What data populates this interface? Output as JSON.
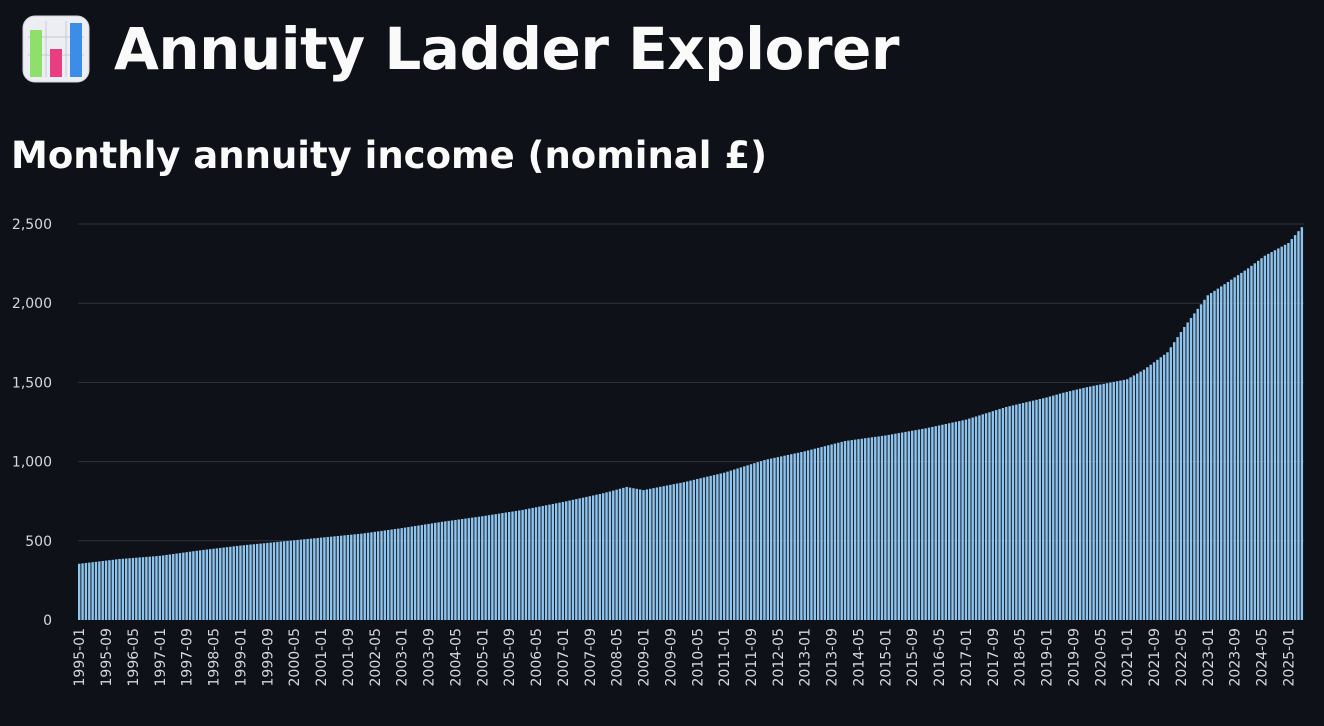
{
  "app": {
    "title": "Annuity Ladder Explorer",
    "icon": "bar-chart-icon"
  },
  "chart_data": {
    "type": "bar",
    "title": "Monthly annuity income (nominal £)",
    "xlabel": "",
    "ylabel": "",
    "ylim": [
      0,
      2500
    ],
    "grid": true,
    "legend": "none",
    "bar_color": "#8fc4ee",
    "y_ticks": [
      "0",
      "500",
      "1,000",
      "1,500",
      "2,000",
      "2,500"
    ],
    "x_tick_labels": [
      "1995-01",
      "1995-09",
      "1996-05",
      "1997-01",
      "1997-09",
      "1998-05",
      "1999-01",
      "1999-09",
      "2000-05",
      "2001-01",
      "2001-09",
      "2002-05",
      "2003-01",
      "2003-09",
      "2004-05",
      "2005-01",
      "2005-09",
      "2006-05",
      "2007-01",
      "2007-09",
      "2008-05",
      "2009-01",
      "2009-09",
      "2010-05",
      "2011-01",
      "2011-09",
      "2012-05",
      "2013-01",
      "2013-09",
      "2014-05",
      "2015-01",
      "2015-09",
      "2016-05",
      "2017-01",
      "2017-09",
      "2018-05",
      "2019-01",
      "2019-09",
      "2020-05",
      "2021-01",
      "2021-09",
      "2022-05",
      "2023-01",
      "2023-09",
      "2024-05",
      "2025-01"
    ],
    "x_start": "1995-01",
    "x_end": "2025-05",
    "series": [
      {
        "anchors": [
          [
            "1995-01",
            355
          ],
          [
            "1996-01",
            385
          ],
          [
            "1997-01",
            405
          ],
          [
            "1998-01",
            440
          ],
          [
            "1999-01",
            470
          ],
          [
            "2000-01",
            495
          ],
          [
            "2001-01",
            520
          ],
          [
            "2002-01",
            545
          ],
          [
            "2003-01",
            580
          ],
          [
            "2004-01",
            620
          ],
          [
            "2005-01",
            655
          ],
          [
            "2006-01",
            695
          ],
          [
            "2007-01",
            745
          ],
          [
            "2008-01",
            800
          ],
          [
            "2008-08",
            840
          ],
          [
            "2009-01",
            820
          ],
          [
            "2010-01",
            870
          ],
          [
            "2011-01",
            930
          ],
          [
            "2012-01",
            1010
          ],
          [
            "2013-01",
            1065
          ],
          [
            "2014-01",
            1130
          ],
          [
            "2015-01",
            1165
          ],
          [
            "2016-01",
            1210
          ],
          [
            "2017-01",
            1265
          ],
          [
            "2018-01",
            1345
          ],
          [
            "2019-01",
            1405
          ],
          [
            "2019-06",
            1435
          ],
          [
            "2020-01",
            1470
          ],
          [
            "2021-01",
            1520
          ],
          [
            "2021-06",
            1580
          ],
          [
            "2022-01",
            1690
          ],
          [
            "2022-06",
            1850
          ],
          [
            "2023-01",
            2050
          ],
          [
            "2023-06",
            2120
          ],
          [
            "2024-01",
            2220
          ],
          [
            "2024-06",
            2300
          ],
          [
            "2025-01",
            2380
          ],
          [
            "2025-05",
            2480
          ]
        ]
      }
    ]
  }
}
